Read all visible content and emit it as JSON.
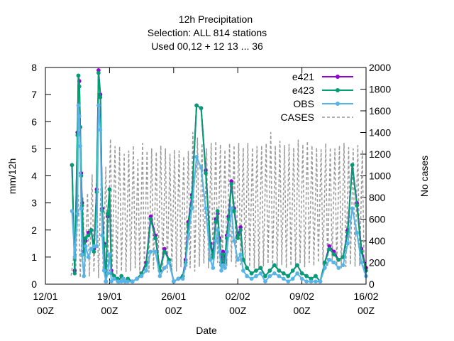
{
  "chart_data": {
    "type": "line",
    "title_lines": [
      "12h Precipitation",
      "Selection: ALL    814 stations",
      "Used  00,12  + 12 13 ... 36"
    ],
    "xlabel": "Date",
    "ylabel": "mm/12h",
    "y2label": "No cases",
    "x_range": [
      "2020-01-12 00Z",
      "2020-02-16 00Z"
    ],
    "ylim": [
      0,
      8
    ],
    "y2lim": [
      0,
      2000
    ],
    "y_ticks": [
      0,
      1,
      2,
      3,
      4,
      5,
      6,
      7,
      8
    ],
    "y2_ticks": [
      0,
      200,
      400,
      600,
      800,
      1000,
      1200,
      1400,
      1600,
      1800,
      2000
    ],
    "x_ticks": [
      {
        "date": "12/01",
        "time": "00Z"
      },
      {
        "date": "19/01",
        "time": "00Z"
      },
      {
        "date": "26/01",
        "time": "00Z"
      },
      {
        "date": "02/02",
        "time": "00Z"
      },
      {
        "date": "09/02",
        "time": "00Z"
      },
      {
        "date": "16/02",
        "time": "00Z"
      }
    ],
    "legend_position": "top-right",
    "series": [
      {
        "name": "e421",
        "color": "#9400d3",
        "axis": "y",
        "x": [
          2.9,
          3.2,
          3.5,
          3.6,
          3.7,
          3.8,
          3.9,
          4.0,
          4.2,
          4.4,
          4.7,
          5.0,
          5.3,
          5.6,
          5.8,
          6.0,
          6.2,
          6.4,
          6.6,
          6.8,
          7.0,
          7.2,
          7.5,
          7.9,
          8.0,
          8.3,
          8.5,
          8.7,
          9.0,
          9.5,
          10.0,
          10.5,
          11.0,
          11.5,
          12.0,
          12.5,
          13.0,
          13.5,
          14.0,
          14.5,
          15.0,
          15.3,
          15.6,
          16.0,
          16.5,
          17.0,
          17.5,
          18.0,
          18.3,
          18.6,
          18.8,
          19.0,
          19.2,
          19.4,
          19.6,
          19.8,
          20.0,
          20.3,
          20.6,
          21.0,
          21.3,
          21.6,
          22.0,
          22.5,
          23.0,
          23.5,
          24.0,
          24.5,
          25.0,
          25.5,
          26.0,
          26.5,
          27.0,
          27.5,
          28.0,
          28.5,
          29.0,
          29.5,
          30.0,
          30.5,
          31.0,
          31.5,
          32.0,
          32.5,
          33.0,
          33.5,
          34.0,
          34.5,
          35.0
        ],
        "y": [
          4.4,
          0.5,
          5.6,
          7.7,
          7.5,
          5.8,
          4.1,
          3.0,
          1.2,
          1.6,
          1.9,
          2.0,
          1.3,
          3.5,
          7.9,
          7.0,
          2.8,
          1.5,
          0.1,
          2.5,
          3.5,
          0.5,
          0.3,
          0.2,
          0.1,
          0.3,
          0.2,
          0.1,
          0.2,
          0.1,
          0.2,
          0.4,
          0.8,
          2.5,
          1.8,
          0.5,
          1.3,
          0.9,
          0.1,
          0.2,
          0.3,
          0.9,
          2.3,
          3.3,
          6.6,
          6.5,
          4.2,
          1.5,
          1.1,
          2.4,
          2.6,
          1.7,
          0.8,
          1.2,
          0.9,
          1.8,
          2.5,
          3.8,
          2.8,
          1.8,
          2.1,
          0.9,
          0.6,
          0.4,
          0.5,
          0.6,
          0.3,
          0.5,
          0.7,
          0.5,
          0.4,
          0.3,
          0.5,
          0.7,
          0.4,
          0.3,
          0.2,
          0.3,
          0.1,
          0.8,
          1.4,
          1.2,
          0.9,
          1.0,
          2.0,
          4.4,
          3.0,
          1.3,
          0.6
        ]
      },
      {
        "name": "e423",
        "color": "#009e73",
        "axis": "y",
        "x": [
          2.9,
          3.2,
          3.5,
          3.6,
          3.7,
          3.8,
          3.9,
          4.0,
          4.2,
          4.4,
          4.7,
          5.0,
          5.3,
          5.6,
          5.8,
          6.0,
          6.2,
          6.4,
          6.6,
          6.8,
          7.0,
          7.2,
          7.5,
          7.9,
          8.0,
          8.3,
          8.5,
          8.7,
          9.0,
          9.5,
          10.0,
          10.5,
          11.0,
          11.5,
          12.0,
          12.5,
          13.0,
          13.5,
          14.0,
          14.5,
          15.0,
          15.3,
          15.6,
          16.0,
          16.5,
          17.0,
          17.5,
          18.0,
          18.3,
          18.6,
          18.8,
          19.0,
          19.2,
          19.4,
          19.6,
          19.8,
          20.0,
          20.3,
          20.6,
          21.0,
          21.3,
          21.6,
          22.0,
          22.5,
          23.0,
          23.5,
          24.0,
          24.5,
          25.0,
          25.5,
          26.0,
          26.5,
          27.0,
          27.5,
          28.0,
          28.5,
          29.0,
          29.5,
          30.0,
          30.5,
          31.0,
          31.5,
          32.0,
          32.5,
          33.0,
          33.5,
          34.0,
          34.5,
          35.0
        ],
        "y": [
          4.4,
          0.4,
          5.5,
          7.7,
          7.3,
          5.8,
          4.0,
          2.9,
          1.1,
          1.7,
          1.8,
          2.0,
          1.2,
          3.4,
          7.8,
          6.9,
          2.7,
          1.4,
          0.1,
          2.6,
          3.5,
          0.4,
          0.3,
          0.2,
          0.1,
          0.3,
          0.2,
          0.1,
          0.2,
          0.1,
          0.2,
          0.4,
          0.7,
          2.4,
          1.7,
          0.5,
          1.2,
          0.9,
          0.1,
          0.2,
          0.3,
          0.8,
          2.2,
          3.2,
          6.6,
          6.5,
          4.1,
          1.4,
          1.0,
          2.3,
          2.7,
          1.6,
          0.7,
          1.1,
          0.8,
          1.7,
          2.4,
          3.7,
          2.7,
          1.7,
          2.0,
          0.9,
          0.6,
          0.4,
          0.5,
          0.6,
          0.3,
          0.5,
          0.7,
          0.5,
          0.4,
          0.3,
          0.5,
          0.7,
          0.4,
          0.3,
          0.2,
          0.3,
          0.1,
          0.8,
          1.3,
          1.1,
          0.9,
          1.0,
          1.9,
          4.4,
          2.9,
          1.2,
          0.5
        ]
      },
      {
        "name": "OBS",
        "color": "#56b4e9",
        "axis": "y",
        "x": [
          2.9,
          3.2,
          3.5,
          3.6,
          3.7,
          3.8,
          3.9,
          4.0,
          4.2,
          4.4,
          4.7,
          5.0,
          5.3,
          5.6,
          5.8,
          6.0,
          6.2,
          6.4,
          6.6,
          6.8,
          7.0,
          7.2,
          7.5,
          7.9,
          8.0,
          8.3,
          8.5,
          8.7,
          9.0,
          9.5,
          10.0,
          10.5,
          11.0,
          11.5,
          12.0,
          12.5,
          13.0,
          13.5,
          14.0,
          14.5,
          15.0,
          15.3,
          15.6,
          16.0,
          16.5,
          17.0,
          17.5,
          18.0,
          18.3,
          18.6,
          18.8,
          19.0,
          19.2,
          19.4,
          19.6,
          19.8,
          20.0,
          20.3,
          20.6,
          21.0,
          21.3,
          21.6,
          22.0,
          22.5,
          23.0,
          23.5,
          24.0,
          24.5,
          25.0,
          25.5,
          26.0,
          26.5,
          27.0,
          27.5,
          28.0,
          28.5,
          29.0,
          29.5,
          30.0,
          30.5,
          31.0,
          31.5,
          32.0,
          32.5,
          33.0,
          33.5,
          34.0,
          34.5,
          35.0
        ],
        "y": [
          2.7,
          1.0,
          2.6,
          6.6,
          6.2,
          5.1,
          2.8,
          1.1,
          0.3,
          1.4,
          1.0,
          1.3,
          1.4,
          1.4,
          6.6,
          5.7,
          1.8,
          0.5,
          0.1,
          0.4,
          1.1,
          0.1,
          0.2,
          0.1,
          0.1,
          0.1,
          0.2,
          0.1,
          0.1,
          0.1,
          0.2,
          0.3,
          0.5,
          1.2,
          1.2,
          0.3,
          0.6,
          0.8,
          0.1,
          0.2,
          0.2,
          0.7,
          1.8,
          2.8,
          4.7,
          4.3,
          2.8,
          0.9,
          0.6,
          1.6,
          2.0,
          1.2,
          0.5,
          0.7,
          0.6,
          1.2,
          1.8,
          2.8,
          1.6,
          0.9,
          1.1,
          0.5,
          0.3,
          0.2,
          0.3,
          0.4,
          0.1,
          0.3,
          0.4,
          0.3,
          0.2,
          0.1,
          0.2,
          0.4,
          0.2,
          0.1,
          0.1,
          0.1,
          0.1,
          0.6,
          0.9,
          0.8,
          0.6,
          0.7,
          1.5,
          2.8,
          1.9,
          0.8,
          0.3
        ]
      },
      {
        "name": "CASES",
        "color": "#999999",
        "axis": "y2",
        "dashed": true,
        "x": [
          2.8,
          3.1,
          3.3,
          3.6,
          3.8,
          4.1,
          4.3,
          4.6,
          4.8,
          5.1,
          5.3,
          5.6,
          5.8,
          6.1,
          6.3,
          6.6,
          6.8,
          7.1,
          7.3,
          7.6,
          7.8,
          8.1,
          8.3,
          8.6,
          8.8,
          9.1,
          9.3,
          9.6,
          9.8,
          10.1,
          10.3,
          10.6,
          10.8,
          11.1,
          11.3,
          11.6,
          11.8,
          12.1,
          12.3,
          12.6,
          12.8,
          13.1,
          13.3,
          13.6,
          13.8,
          14.1,
          14.3,
          14.6,
          14.8,
          15.1,
          15.3,
          15.6,
          15.8,
          16.1,
          16.3,
          16.6,
          16.8,
          17.1,
          17.3,
          17.6,
          17.8,
          18.1,
          18.3,
          18.6,
          18.8,
          19.1,
          19.3,
          19.6,
          19.8,
          20.1,
          20.3,
          20.6,
          20.8,
          21.1,
          21.3,
          21.6,
          21.8,
          22.1,
          22.3,
          22.6,
          22.8,
          23.1,
          23.3,
          23.6,
          23.8,
          24.1,
          24.3,
          24.6,
          24.8,
          25.1,
          25.3,
          25.6,
          25.8,
          26.1,
          26.3,
          26.6,
          26.8,
          27.1,
          27.3,
          27.6,
          27.8,
          28.1,
          28.3,
          28.6,
          28.8,
          29.1,
          29.3,
          29.6,
          29.8,
          30.1,
          30.3,
          30.6,
          30.8,
          31.1,
          31.3,
          31.6,
          31.8,
          32.1,
          32.3,
          32.6,
          32.8,
          33.1,
          33.3,
          33.6,
          33.8,
          34.1,
          34.3,
          34.6,
          34.8
        ],
        "y": [
          80,
          260,
          120,
          820,
          60,
          800,
          90,
          840,
          70,
          1010,
          110,
          1000,
          60,
          1040,
          130,
          1080,
          100,
          1340,
          150,
          1270,
          90,
          1270,
          120,
          1200,
          110,
          1230,
          120,
          1280,
          150,
          1150,
          100,
          1300,
          130,
          1230,
          110,
          1250,
          140,
          1220,
          150,
          1280,
          120,
          1250,
          110,
          1200,
          130,
          1240,
          120,
          1230,
          160,
          1180,
          130,
          1230,
          150,
          1400,
          120,
          1350,
          160,
          1300,
          190,
          1250,
          150,
          1300,
          170,
          1320,
          200,
          1290,
          190,
          1240,
          170,
          1300,
          210,
          1280,
          160,
          1300,
          180,
          1260,
          200,
          1300,
          160,
          1260,
          150,
          1270,
          140,
          1280,
          170,
          1300,
          190,
          1400,
          160,
          1280,
          140,
          1320,
          180,
          1280,
          150,
          1290,
          170,
          1260,
          160,
          1330,
          190,
          1290,
          160,
          1320,
          200,
          1280,
          170,
          1260,
          200,
          1240,
          180,
          1300,
          160,
          1260,
          190,
          1250,
          170,
          1280,
          150,
          1300,
          160,
          1260,
          180,
          1250,
          160,
          1280,
          170,
          1240,
          100
        ]
      }
    ]
  }
}
